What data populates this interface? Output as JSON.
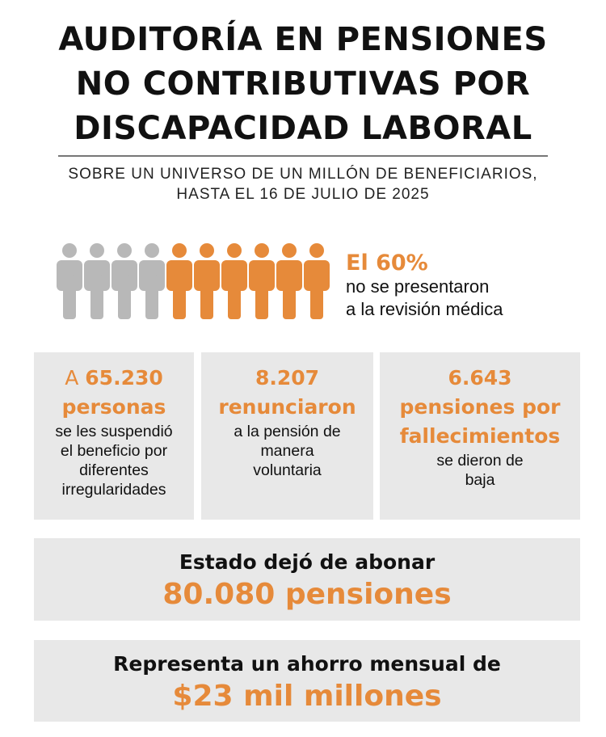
{
  "title": [
    "AUDITORÍA EN PENSIONES",
    "NO CONTRIBUTIVAS POR",
    "DISCAPACIDAD LABORAL"
  ],
  "subtitle": [
    "SOBRE UN UNIVERSO DE UN MILLÓN DE BENEFICIARIOS,",
    "HASTA EL 16 DE JULIO DE 2025"
  ],
  "colors": {
    "accent": "#e68a3a",
    "person_gray": "#b8b8b8",
    "box_bg": "#e8e8e8"
  },
  "people": {
    "icon": "person-icon",
    "total": 10,
    "highlighted": 6
  },
  "stat60": {
    "value": "El 60%",
    "line1": "no se presentaron",
    "line2": "a la revisión médica"
  },
  "boxes": [
    {
      "prefix": "A ",
      "num": "65.230",
      "num2": "personas",
      "desc": [
        "se les suspendió",
        "el beneficio por",
        "diferentes",
        "irregularidades"
      ]
    },
    {
      "num": "8.207",
      "num2": "renunciaron",
      "desc": [
        "a la pensión de",
        "manera",
        "voluntaria"
      ]
    },
    {
      "num": "6.643",
      "num2": "pensiones por",
      "num3": "fallecimientos",
      "desc": [
        "se dieron de",
        "baja"
      ]
    }
  ],
  "total": {
    "label": "Estado dejó de abonar",
    "value": "80.080 pensiones"
  },
  "savings": {
    "label": "Representa un ahorro mensual de",
    "value": "$23 mil millones"
  }
}
